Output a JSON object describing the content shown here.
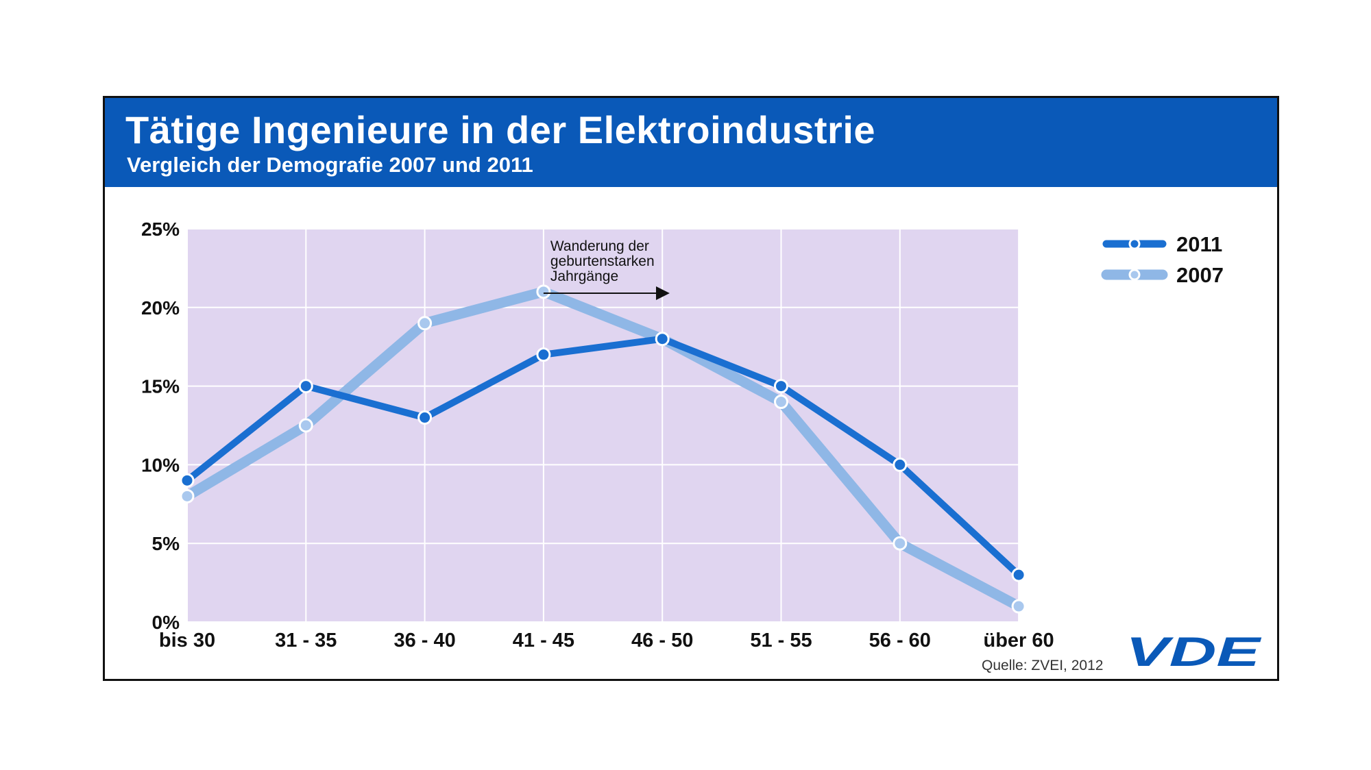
{
  "header": {
    "title": "Tätige Ingenieure in der Elektroindustrie",
    "subtitle": "Vergleich der Demografie 2007 und 2011"
  },
  "chart_data": {
    "type": "line",
    "title": "Tätige Ingenieure in der Elektroindustrie",
    "subtitle": "Vergleich der Demografie 2007 und 2011",
    "categories": [
      "bis 30",
      "31 - 35",
      "36 - 40",
      "41 - 45",
      "46 - 50",
      "51 - 55",
      "56 - 60",
      "über 60"
    ],
    "yticks": [
      "0%",
      "5%",
      "10%",
      "15%",
      "20%",
      "25%"
    ],
    "ylim": [
      0,
      25
    ],
    "grid": true,
    "legend_position": "top-right",
    "series": [
      {
        "name": "2011",
        "color": "#1a6fd1",
        "values": [
          9,
          15,
          13,
          17,
          18,
          15,
          10,
          3
        ]
      },
      {
        "name": "2007",
        "color": "#8fb7e6",
        "values": [
          8,
          12.5,
          19,
          21,
          18,
          14,
          5,
          1
        ]
      }
    ],
    "annotation": {
      "lines": [
        "Wanderung der",
        "geburtenstarken",
        "Jahrgänge"
      ]
    },
    "source": "Quelle: ZVEI, 2012"
  },
  "logo": {
    "text": "VDE"
  },
  "colors": {
    "header": "#0a59b8",
    "plot_bg": "#e0d5f0",
    "grid": "#ffffff"
  }
}
